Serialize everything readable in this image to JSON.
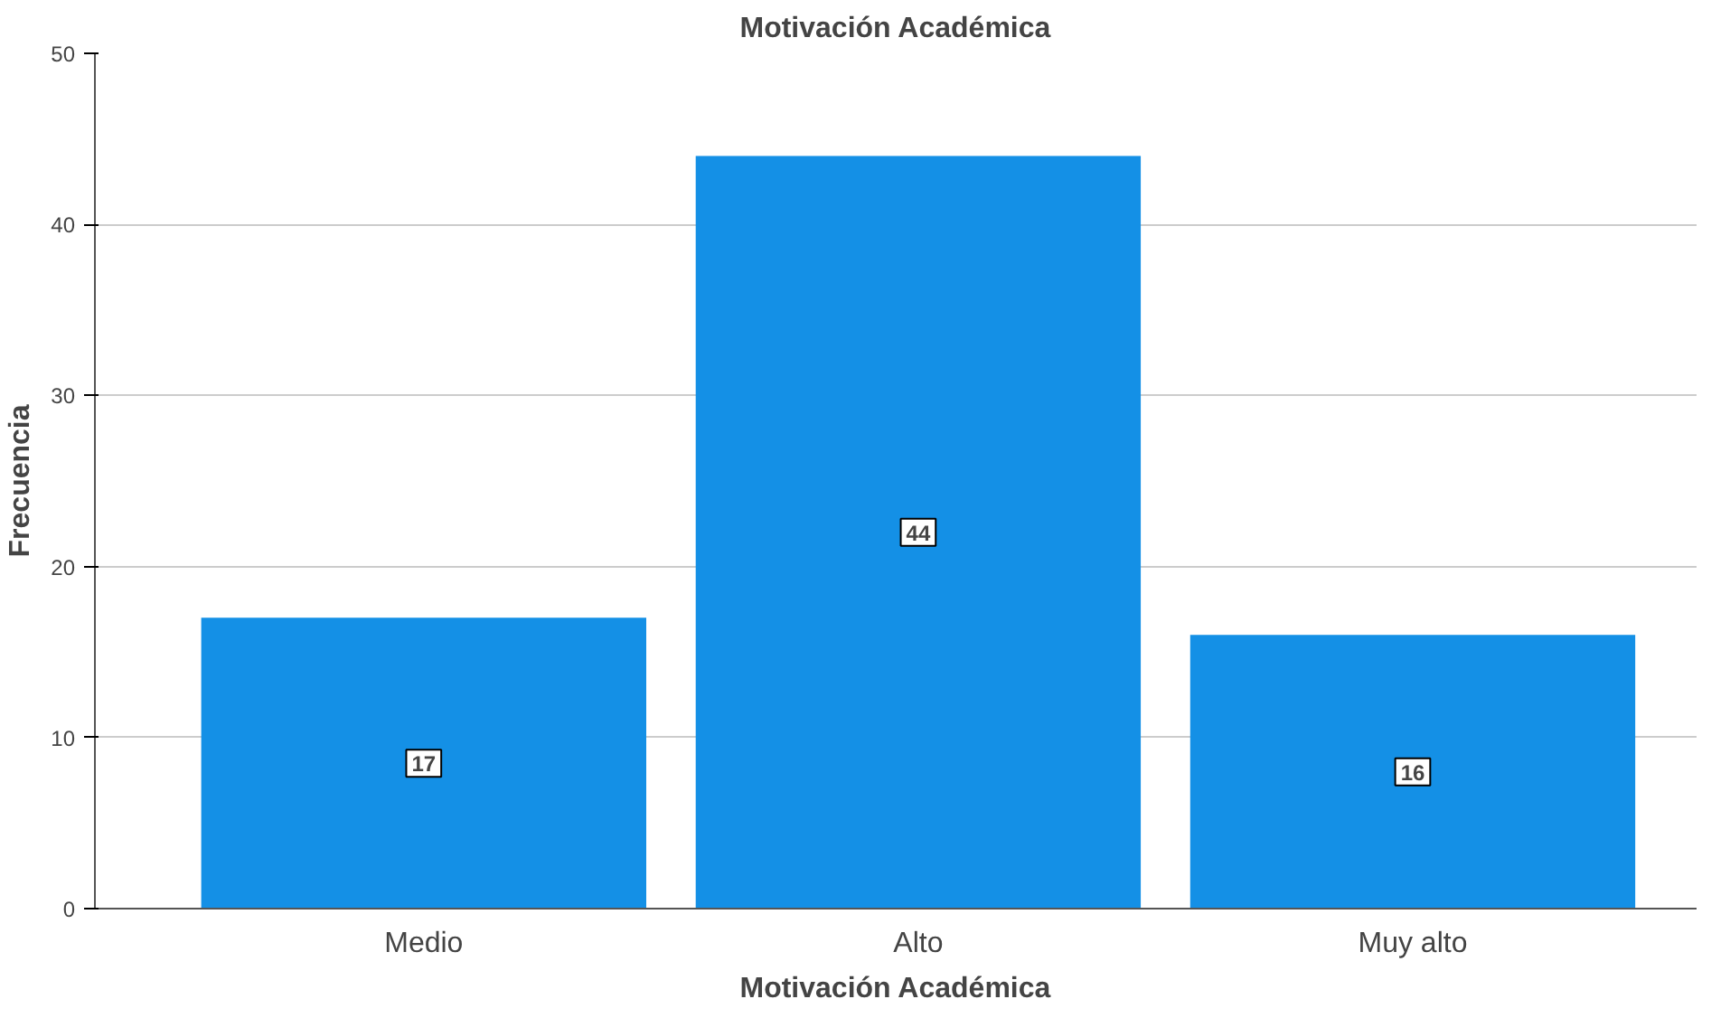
{
  "chart_data": {
    "type": "bar",
    "title": "Motivación Académica",
    "xlabel": "Motivación Académica",
    "ylabel": "Frecuencia",
    "categories": [
      "Medio",
      "Alto",
      "Muy alto"
    ],
    "values": [
      17,
      44,
      16
    ],
    "color": "#1490e6",
    "ylim": [
      0,
      50
    ],
    "yticks": [
      0,
      10,
      20,
      30,
      40,
      50
    ],
    "grid": "y",
    "data_labels": true
  }
}
